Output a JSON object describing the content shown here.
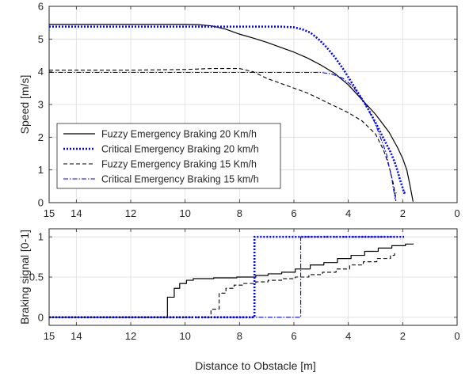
{
  "chart_data": [
    {
      "type": "line",
      "title": "",
      "xlabel": "",
      "ylabel": "Speed [m/s]",
      "xlim": [
        15,
        0
      ],
      "x_reversed": true,
      "ylim": [
        0,
        6
      ],
      "x_ticks": [
        15,
        14,
        12,
        10,
        8,
        6,
        4,
        2,
        0
      ],
      "y_ticks": [
        0,
        1,
        2,
        3,
        4,
        5,
        6
      ],
      "grid": true,
      "legend_position": "lower-left",
      "series": [
        {
          "name": "Fuzzy Emergency Braking 20 Km/h",
          "color": "#000000",
          "style": "solid",
          "x": [
            15,
            12,
            10,
            9.5,
            9.0,
            8.5,
            8.0,
            7.5,
            7.0,
            6.5,
            6.0,
            5.5,
            5.0,
            4.5,
            4.0,
            3.5,
            3.0,
            2.5,
            2.2,
            2.0,
            1.85,
            1.75,
            1.68,
            1.64,
            1.62
          ],
          "y": [
            5.45,
            5.45,
            5.45,
            5.44,
            5.4,
            5.3,
            5.15,
            5.03,
            4.9,
            4.75,
            4.6,
            4.42,
            4.2,
            3.95,
            3.6,
            3.15,
            2.7,
            2.15,
            1.7,
            1.35,
            1.0,
            0.6,
            0.3,
            0.12,
            0.03
          ]
        },
        {
          "name": "Critical Emergency Braking 20 km/h",
          "color": "#0000ff",
          "style": "dotted",
          "x": [
            15,
            12,
            10,
            8,
            7,
            6.5,
            6.0,
            5.7,
            5.4,
            5.1,
            4.8,
            4.5,
            4.2,
            3.9,
            3.6,
            3.3,
            3.0,
            2.7,
            2.45,
            2.3,
            2.2,
            2.1,
            2.0,
            1.95,
            1.9,
            1.85
          ],
          "y": [
            5.38,
            5.38,
            5.38,
            5.38,
            5.38,
            5.38,
            5.36,
            5.3,
            5.2,
            5.0,
            4.75,
            4.45,
            4.1,
            3.7,
            3.3,
            2.9,
            2.45,
            1.95,
            1.55,
            1.25,
            1.0,
            0.7,
            0.45,
            0.3,
            0.32,
            0.33
          ]
        },
        {
          "name": "Fuzzy Emergency Braking 15 Km/h",
          "color": "#000000",
          "style": "dashed",
          "x": [
            15,
            12,
            10,
            9,
            8.5,
            8.0,
            7.5,
            7.0,
            6.5,
            6.0,
            5.5,
            5.0,
            4.5,
            4.0,
            3.5,
            3.0,
            2.7,
            2.5,
            2.35,
            2.3,
            2.26,
            2.25
          ],
          "y": [
            4.05,
            4.05,
            4.07,
            4.1,
            4.1,
            4.1,
            4.0,
            3.8,
            3.65,
            3.5,
            3.35,
            3.15,
            2.95,
            2.75,
            2.5,
            2.1,
            1.6,
            1.1,
            0.6,
            0.35,
            0.15,
            0.05
          ]
        },
        {
          "name": "Critical Emergency Braking 15 km/h",
          "color": "#0000ff",
          "style": "dashdot",
          "x": [
            15,
            12,
            10,
            8,
            6,
            5.0,
            4.6,
            4.2,
            3.9,
            3.6,
            3.3,
            3.0,
            2.8,
            2.6,
            2.5,
            2.4,
            2.35,
            2.3,
            2.28,
            2.25,
            2.2
          ],
          "y": [
            3.98,
            3.98,
            3.98,
            3.98,
            3.98,
            3.98,
            3.93,
            3.8,
            3.6,
            3.3,
            2.9,
            2.4,
            1.95,
            1.5,
            1.1,
            0.75,
            0.45,
            0.25,
            0.12,
            0.3,
            0.3
          ]
        }
      ]
    },
    {
      "type": "line",
      "title": "",
      "xlabel": "Distance to Obstacle [m]",
      "ylabel": "Braking signal [0-1]",
      "xlim": [
        15,
        0
      ],
      "x_reversed": true,
      "ylim": [
        -0.1,
        1.1
      ],
      "x_ticks": [
        15,
        14,
        12,
        10,
        8,
        6,
        4,
        2,
        0
      ],
      "y_ticks": [
        0,
        0.5,
        1
      ],
      "grid": true,
      "series": [
        {
          "name": "Fuzzy Emergency Braking 20 Km/h",
          "color": "#000000",
          "style": "solid",
          "step": true,
          "x": [
            15,
            10.65,
            10.65,
            10.4,
            10.2,
            9.95,
            9.7,
            8.95,
            8.1,
            7.4,
            6.95,
            6.45,
            5.95,
            5.4,
            4.9,
            4.4,
            3.9,
            3.4,
            2.9,
            2.4,
            1.9,
            1.6
          ],
          "y": [
            0,
            0,
            0.25,
            0.36,
            0.42,
            0.46,
            0.48,
            0.49,
            0.5,
            0.52,
            0.54,
            0.56,
            0.6,
            0.65,
            0.68,
            0.73,
            0.77,
            0.82,
            0.86,
            0.89,
            0.91,
            0.91
          ]
        },
        {
          "name": "Critical Emergency Braking 20 km/h",
          "color": "#0000ff",
          "style": "dotted",
          "step": true,
          "x": [
            15,
            7.45,
            7.45,
            1.95
          ],
          "y": [
            0,
            0,
            1,
            1
          ]
        },
        {
          "name": "Fuzzy Emergency Braking 15 Km/h",
          "color": "#000000",
          "style": "dashed",
          "step": true,
          "x": [
            15,
            9.05,
            9.05,
            8.75,
            8.5,
            8.2,
            7.85,
            7.4,
            6.95,
            6.45,
            5.95,
            5.45,
            4.95,
            4.45,
            3.95,
            3.45,
            2.95,
            2.45,
            2.3
          ],
          "y": [
            0,
            0,
            0.1,
            0.3,
            0.36,
            0.4,
            0.42,
            0.44,
            0.46,
            0.48,
            0.5,
            0.53,
            0.56,
            0.6,
            0.65,
            0.69,
            0.73,
            0.77,
            0.82
          ]
        },
        {
          "name": "Critical Emergency Braking 15 km/h",
          "color": "#0000ff",
          "style": "dashdot",
          "step": true,
          "x": [
            15,
            5.75,
            5.75,
            2.2
          ],
          "y": [
            0,
            0,
            1,
            1
          ]
        }
      ]
    }
  ]
}
